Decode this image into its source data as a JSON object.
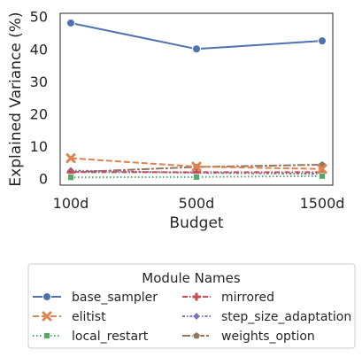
{
  "chart_data": {
    "type": "line",
    "categories": [
      "100d",
      "500d",
      "1500d"
    ],
    "xlabel": "Budget",
    "ylabel": "Explained Variance (%)",
    "ylim": [
      -2,
      51
    ],
    "yticks": [
      0,
      10,
      20,
      30,
      40,
      50
    ],
    "grid": false,
    "legend": {
      "title": "Module Names",
      "placement": "below",
      "columns": 2
    },
    "series": [
      {
        "name": "base_sampler",
        "values": [
          48.0,
          40.0,
          42.5
        ],
        "color": "#4c72b0",
        "dash": "solid",
        "marker": "circle"
      },
      {
        "name": "elitist",
        "values": [
          6.3,
          3.7,
          3.0
        ],
        "color": "#dd8452",
        "dash": "dashed",
        "marker": "x"
      },
      {
        "name": "local_restart",
        "values": [
          0.4,
          0.5,
          0.8
        ],
        "color": "#55a868",
        "dash": "dotted",
        "marker": "square"
      },
      {
        "name": "mirrored",
        "values": [
          2.0,
          2.0,
          2.0
        ],
        "color": "#c44e52",
        "dash": "dashdot",
        "marker": "plus"
      },
      {
        "name": "step_size_adaptation",
        "values": [
          2.5,
          1.8,
          1.5
        ],
        "color": "#8172b3",
        "dash": "dashdot2",
        "marker": "diamond"
      },
      {
        "name": "weights_option",
        "values": [
          2.0,
          3.6,
          4.3
        ],
        "color": "#937860",
        "dash": "longdash",
        "marker": "pentagon"
      }
    ]
  }
}
